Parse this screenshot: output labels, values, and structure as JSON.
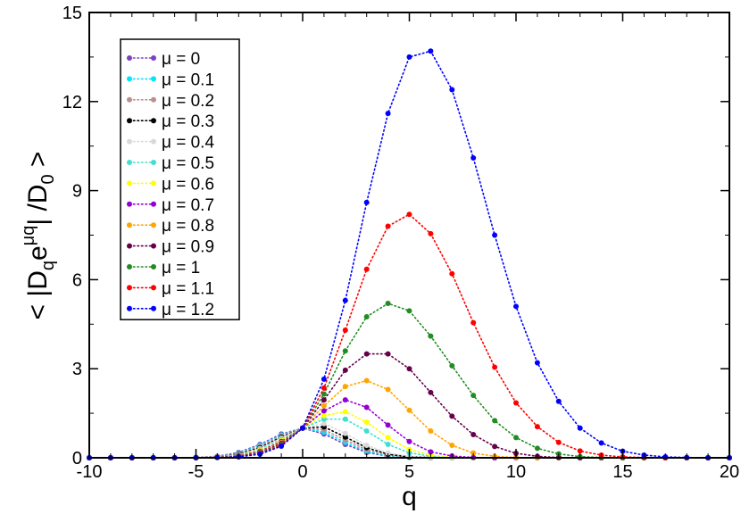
{
  "chart_data": {
    "type": "line",
    "xlabel": "q",
    "ylabel_parts": {
      "lead": "< |D",
      "sub_q": "q",
      "e": "e",
      "sup": "μq",
      "mid": "| /D",
      "sub_0": "0",
      "tail": " >"
    },
    "xlim": [
      -10,
      20
    ],
    "ylim": [
      0,
      15
    ],
    "x_ticks": [
      -10,
      -5,
      0,
      5,
      10,
      15,
      20
    ],
    "x_tick_labels": [
      "-10",
      "-5",
      "0",
      "5",
      "10",
      "15",
      "20"
    ],
    "y_ticks": [
      0,
      3,
      6,
      9,
      12,
      15
    ],
    "y_tick_labels": [
      "0",
      "3",
      "6",
      "9",
      "12",
      "15"
    ],
    "grid": false,
    "legend_position": "top-left",
    "line_style": "dotted",
    "x": [
      -10,
      -9,
      -8,
      -7,
      -6,
      -5,
      -4,
      -3,
      -2,
      -1,
      0,
      1,
      2,
      3,
      4,
      5,
      6,
      7,
      8,
      9,
      10,
      11,
      12,
      13,
      14,
      15,
      16,
      17,
      18,
      19,
      20
    ],
    "series": [
      {
        "name": "μ = 0",
        "label": "μ = 0",
        "color": "#7f3fbf",
        "values": [
          0,
          0,
          0,
          0,
          0,
          0.01,
          0.05,
          0.18,
          0.45,
          0.8,
          1.0,
          0.8,
          0.45,
          0.18,
          0.05,
          0.01,
          0,
          0,
          0,
          0,
          0,
          0,
          0,
          0,
          0,
          0,
          0,
          0,
          0,
          0,
          0
        ]
      },
      {
        "name": "μ = 0.1",
        "label": "μ = 0.1",
        "color": "#00e5ff",
        "values": [
          0,
          0,
          0,
          0,
          0,
          0.01,
          0.04,
          0.16,
          0.42,
          0.77,
          1.0,
          0.86,
          0.52,
          0.22,
          0.06,
          0.01,
          0,
          0,
          0,
          0,
          0,
          0,
          0,
          0,
          0,
          0,
          0,
          0,
          0,
          0,
          0
        ]
      },
      {
        "name": "μ = 0.2",
        "label": "μ = 0.2",
        "color": "#bc8f8f",
        "values": [
          0,
          0,
          0,
          0,
          0,
          0.01,
          0.04,
          0.14,
          0.38,
          0.73,
          1.0,
          0.94,
          0.6,
          0.27,
          0.09,
          0.02,
          0,
          0,
          0,
          0,
          0,
          0,
          0,
          0,
          0,
          0,
          0,
          0,
          0,
          0,
          0
        ]
      },
      {
        "name": "μ = 0.3",
        "label": "μ = 0.3",
        "color": "#000000",
        "values": [
          0,
          0,
          0,
          0,
          0,
          0.01,
          0.03,
          0.12,
          0.34,
          0.69,
          1.0,
          1.04,
          0.7,
          0.34,
          0.12,
          0.03,
          0.01,
          0,
          0,
          0,
          0,
          0,
          0,
          0,
          0,
          0,
          0,
          0,
          0,
          0,
          0
        ]
      },
      {
        "name": "μ = 0.4",
        "label": "μ = 0.4",
        "color": "#d9d9d9",
        "values": [
          0,
          0,
          0,
          0,
          0,
          0.01,
          0.03,
          0.1,
          0.31,
          0.66,
          1.0,
          1.15,
          0.82,
          0.42,
          0.16,
          0.05,
          0.01,
          0,
          0,
          0,
          0,
          0,
          0,
          0,
          0,
          0,
          0,
          0,
          0,
          0,
          0
        ]
      },
      {
        "name": "μ = 0.5",
        "label": "μ = 0.5",
        "color": "#40e0d0",
        "values": [
          0,
          0,
          0,
          0,
          0,
          0.01,
          0.02,
          0.09,
          0.28,
          0.62,
          1.0,
          1.3,
          1.3,
          0.9,
          0.45,
          0.17,
          0.05,
          0.01,
          0,
          0,
          0,
          0,
          0,
          0,
          0,
          0,
          0,
          0,
          0,
          0,
          0
        ]
      },
      {
        "name": "μ = 0.6",
        "label": "μ = 0.6",
        "color": "#ffff00",
        "values": [
          0,
          0,
          0,
          0,
          0,
          0.01,
          0.02,
          0.08,
          0.25,
          0.58,
          1.0,
          1.42,
          1.55,
          1.2,
          0.68,
          0.28,
          0.09,
          0.02,
          0,
          0,
          0,
          0,
          0,
          0,
          0,
          0,
          0,
          0,
          0,
          0,
          0
        ]
      },
      {
        "name": "μ = 0.7",
        "label": "μ = 0.7",
        "color": "#9400d3",
        "values": [
          0,
          0,
          0,
          0,
          0,
          0.01,
          0.02,
          0.07,
          0.22,
          0.55,
          1.0,
          1.58,
          1.95,
          1.7,
          1.1,
          0.55,
          0.2,
          0.06,
          0.01,
          0,
          0,
          0,
          0,
          0,
          0,
          0,
          0,
          0,
          0,
          0,
          0
        ]
      },
      {
        "name": "μ = 0.8",
        "label": "μ = 0.8",
        "color": "#ffa500",
        "values": [
          0,
          0,
          0,
          0,
          0,
          0,
          0.02,
          0.06,
          0.2,
          0.51,
          1.0,
          1.75,
          2.4,
          2.6,
          2.3,
          1.6,
          0.9,
          0.42,
          0.16,
          0.05,
          0.01,
          0,
          0,
          0,
          0,
          0,
          0,
          0,
          0,
          0,
          0
        ]
      },
      {
        "name": "μ = 0.9",
        "label": "μ = 0.9",
        "color": "#67004a",
        "values": [
          0,
          0,
          0,
          0,
          0,
          0,
          0.01,
          0.05,
          0.18,
          0.48,
          1.0,
          1.95,
          2.95,
          3.5,
          3.5,
          3.0,
          2.2,
          1.4,
          0.78,
          0.38,
          0.15,
          0.05,
          0.01,
          0,
          0,
          0,
          0,
          0,
          0,
          0,
          0
        ]
      },
      {
        "name": "μ = 1",
        "label": "μ = 1",
        "color": "#228b22",
        "values": [
          0,
          0,
          0,
          0,
          0,
          0,
          0.01,
          0.05,
          0.16,
          0.45,
          1.0,
          2.15,
          3.6,
          4.75,
          5.2,
          4.95,
          4.1,
          3.1,
          2.1,
          1.25,
          0.68,
          0.32,
          0.13,
          0.04,
          0.01,
          0,
          0,
          0,
          0,
          0,
          0
        ]
      },
      {
        "name": "μ = 1.1",
        "label": "μ = 1.1",
        "color": "#ff0000",
        "values": [
          0,
          0,
          0,
          0,
          0,
          0,
          0.01,
          0.04,
          0.14,
          0.42,
          1.0,
          2.35,
          4.3,
          6.35,
          7.8,
          8.2,
          7.55,
          6.2,
          4.55,
          3.05,
          1.85,
          1.05,
          0.52,
          0.23,
          0.09,
          0.03,
          0.01,
          0,
          0,
          0,
          0
        ]
      },
      {
        "name": "μ = 1.2",
        "label": "μ = 1.2",
        "color": "#0000ff",
        "values": [
          0,
          0,
          0,
          0,
          0,
          0,
          0.01,
          0.03,
          0.12,
          0.39,
          1.0,
          2.65,
          5.3,
          8.6,
          11.6,
          13.5,
          13.7,
          12.4,
          10.1,
          7.5,
          5.1,
          3.2,
          1.9,
          1.0,
          0.5,
          0.22,
          0.09,
          0.03,
          0.01,
          0,
          0
        ]
      }
    ]
  }
}
